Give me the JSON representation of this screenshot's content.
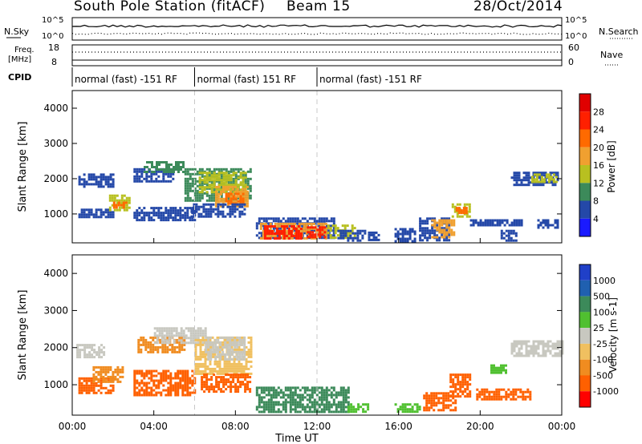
{
  "header": {
    "station": "South Pole Station (fitACF)",
    "beam": "Beam 15",
    "date": "28/Oct/2014"
  },
  "strip_labels": {
    "nsky": "N.Sky",
    "nsky_tick_top": "10^5",
    "nsky_tick_bottom": "10^0",
    "nsearch": "N.Search",
    "nsearch_tick_top": "10^5",
    "nsearch_tick_bottom": "10^0",
    "freq_line1": "Freq.",
    "freq_line2": "[MHz]",
    "freq_tick_top": "18",
    "freq_tick_bottom": "8",
    "nave": "Nave",
    "nave_tick_top": "60",
    "nave_tick_bottom": "0",
    "cpid": "CPID"
  },
  "cpid_segments": [
    {
      "start": 0,
      "end": 6,
      "label": "normal (fast) -151 RF"
    },
    {
      "start": 6,
      "end": 12,
      "label": "normal (fast) 151 RF"
    },
    {
      "start": 12,
      "end": 24,
      "label": "normal (fast) -151 RF"
    }
  ],
  "colors": {
    "power": [
      "#1a1aff",
      "#2448a8",
      "#3c8a5a",
      "#b8c020",
      "#f0a030",
      "#ff6a00",
      "#ff2000",
      "#e00000"
    ],
    "velocity": [
      "#ff0000",
      "#ff6000",
      "#f08c20",
      "#f0c060",
      "#c8c8c0",
      "#50c030",
      "#3c8a5a",
      "#2060b0",
      "#2040c8"
    ]
  },
  "chart_data": [
    {
      "type": "heatmap",
      "name": "power",
      "xlabel": "Time UT",
      "ylabel": "Slant Range [km]",
      "xlim": [
        0,
        24
      ],
      "ylim": [
        180,
        4500
      ],
      "yticks": [
        1000,
        2000,
        3000,
        4000
      ],
      "colorbar": {
        "label": "Power [dB]",
        "ticks": [
          4,
          8,
          12,
          16,
          20,
          24,
          28
        ],
        "range": [
          0,
          32
        ]
      },
      "regions": [
        {
          "t0": 0.3,
          "t1": 2.0,
          "r0": 1800,
          "r1": 2150,
          "level": 1
        },
        {
          "t0": 0.3,
          "t1": 2.0,
          "r0": 900,
          "r1": 1150,
          "level": 1
        },
        {
          "t0": 1.8,
          "t1": 2.8,
          "r0": 1100,
          "r1": 1550,
          "level": 3
        },
        {
          "t0": 2.0,
          "t1": 2.6,
          "r0": 1150,
          "r1": 1350,
          "level": 5
        },
        {
          "t0": 3.0,
          "t1": 5.0,
          "r0": 1900,
          "r1": 2300,
          "level": 1
        },
        {
          "t0": 3.5,
          "t1": 5.5,
          "r0": 2200,
          "r1": 2500,
          "level": 2
        },
        {
          "t0": 3.0,
          "t1": 6.0,
          "r0": 850,
          "r1": 1200,
          "level": 1
        },
        {
          "t0": 5.5,
          "t1": 8.8,
          "r0": 1400,
          "r1": 2300,
          "level": 2
        },
        {
          "t0": 6.2,
          "t1": 8.5,
          "r0": 1600,
          "r1": 2200,
          "level": 3
        },
        {
          "t0": 7.0,
          "t1": 8.6,
          "r0": 1200,
          "r1": 1800,
          "level": 4
        },
        {
          "t0": 7.5,
          "t1": 8.4,
          "r0": 1300,
          "r1": 1600,
          "level": 5
        },
        {
          "t0": 5.8,
          "t1": 8.5,
          "r0": 900,
          "r1": 1300,
          "level": 1
        },
        {
          "t0": 9.0,
          "t1": 12.8,
          "r0": 300,
          "r1": 900,
          "level": 1
        },
        {
          "t0": 9.2,
          "t1": 12.5,
          "r0": 300,
          "r1": 750,
          "level": 4
        },
        {
          "t0": 9.4,
          "t1": 11.2,
          "r0": 320,
          "r1": 680,
          "level": 6
        },
        {
          "t0": 11.5,
          "t1": 12.4,
          "r0": 320,
          "r1": 650,
          "level": 6
        },
        {
          "t0": 12.5,
          "t1": 13.8,
          "r0": 300,
          "r1": 700,
          "level": 3
        },
        {
          "t0": 13.0,
          "t1": 14.3,
          "r0": 250,
          "r1": 550,
          "level": 1
        },
        {
          "t0": 14.5,
          "t1": 15.2,
          "r0": 250,
          "r1": 500,
          "level": 1
        },
        {
          "t0": 15.8,
          "t1": 16.8,
          "r0": 250,
          "r1": 600,
          "level": 1
        },
        {
          "t0": 17.0,
          "t1": 18.5,
          "r0": 250,
          "r1": 900,
          "level": 1
        },
        {
          "t0": 17.6,
          "t1": 18.7,
          "r0": 350,
          "r1": 850,
          "level": 4
        },
        {
          "t0": 18.6,
          "t1": 19.5,
          "r0": 950,
          "r1": 1300,
          "level": 3
        },
        {
          "t0": 18.8,
          "t1": 19.3,
          "r0": 1000,
          "r1": 1200,
          "level": 5
        },
        {
          "t0": 19.5,
          "t1": 22.0,
          "r0": 650,
          "r1": 850,
          "level": 1
        },
        {
          "t0": 21.0,
          "t1": 21.8,
          "r0": 250,
          "r1": 550,
          "level": 1
        },
        {
          "t0": 21.5,
          "t1": 23.8,
          "r0": 1800,
          "r1": 2200,
          "level": 1
        },
        {
          "t0": 22.5,
          "t1": 23.7,
          "r0": 1900,
          "r1": 2150,
          "level": 3
        },
        {
          "t0": 22.8,
          "t1": 23.8,
          "r0": 600,
          "r1": 850,
          "level": 1
        }
      ]
    },
    {
      "type": "heatmap",
      "name": "velocity",
      "xlabel": "Time UT",
      "ylabel": "Slant Range [km]",
      "xlim": [
        0,
        24
      ],
      "ylim": [
        180,
        4500
      ],
      "yticks": [
        1000,
        2000,
        3000,
        4000
      ],
      "xticks": [
        "00:00",
        "04:00",
        "08:00",
        "12:00",
        "16:00",
        "20:00",
        "00:00"
      ],
      "colorbar": {
        "label": "Velocity [m s-1]",
        "ticks": [
          1000,
          500,
          100,
          25,
          -25,
          -100,
          -500,
          -1000
        ]
      },
      "regions": [
        {
          "t0": 0.2,
          "t1": 1.5,
          "r0": 1750,
          "r1": 2100,
          "level": 4
        },
        {
          "t0": 0.3,
          "t1": 2.0,
          "r0": 800,
          "r1": 1200,
          "level": 1
        },
        {
          "t0": 1.0,
          "t1": 2.5,
          "r0": 1100,
          "r1": 1500,
          "level": 2
        },
        {
          "t0": 3.0,
          "t1": 6.0,
          "r0": 750,
          "r1": 1400,
          "level": 1
        },
        {
          "t0": 3.2,
          "t1": 5.5,
          "r0": 1850,
          "r1": 2300,
          "level": 2
        },
        {
          "t0": 4.0,
          "t1": 6.5,
          "r0": 2100,
          "r1": 2550,
          "level": 4
        },
        {
          "t0": 6.0,
          "t1": 8.8,
          "r0": 1300,
          "r1": 2300,
          "level": 3
        },
        {
          "t0": 6.5,
          "t1": 8.5,
          "r0": 1700,
          "r1": 2300,
          "level": 4
        },
        {
          "t0": 6.3,
          "t1": 8.7,
          "r0": 800,
          "r1": 1300,
          "level": 1
        },
        {
          "t0": 9.0,
          "t1": 13.5,
          "r0": 300,
          "r1": 950,
          "level": 6
        },
        {
          "t0": 13.5,
          "t1": 14.5,
          "r0": 250,
          "r1": 500,
          "level": 5
        },
        {
          "t0": 15.8,
          "t1": 17.0,
          "r0": 250,
          "r1": 500,
          "level": 5
        },
        {
          "t0": 17.2,
          "t1": 18.8,
          "r0": 300,
          "r1": 800,
          "level": 1
        },
        {
          "t0": 18.5,
          "t1": 19.5,
          "r0": 700,
          "r1": 1300,
          "level": 1
        },
        {
          "t0": 19.8,
          "t1": 22.5,
          "r0": 600,
          "r1": 900,
          "level": 1
        },
        {
          "t0": 21.5,
          "t1": 24.0,
          "r0": 1800,
          "r1": 2200,
          "level": 4
        },
        {
          "t0": 20.5,
          "t1": 21.3,
          "r0": 1350,
          "r1": 1550,
          "level": 5
        }
      ]
    }
  ]
}
